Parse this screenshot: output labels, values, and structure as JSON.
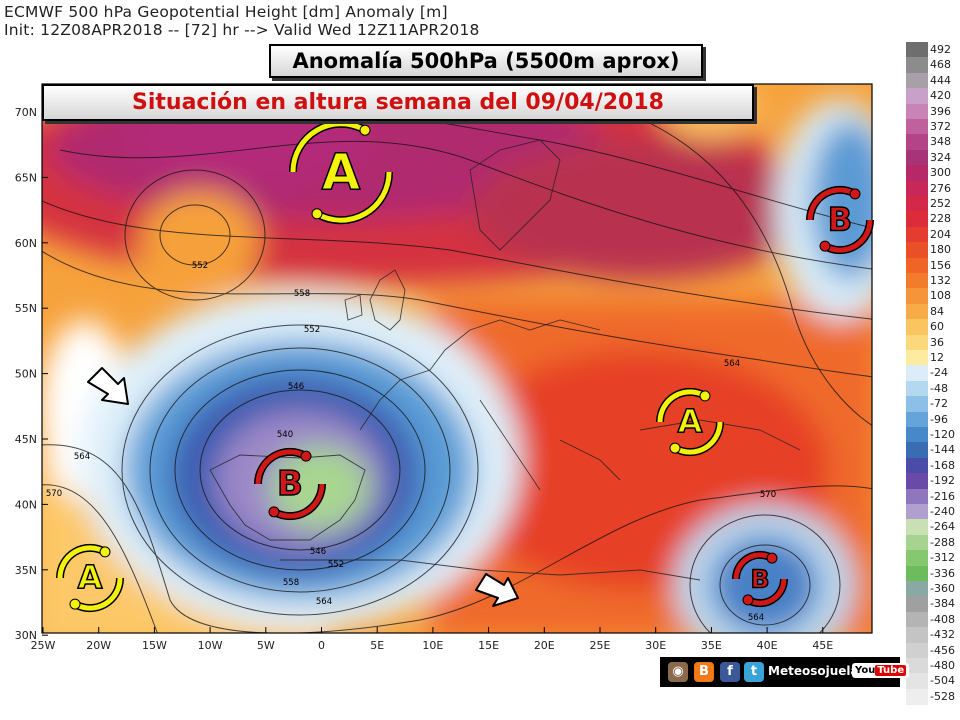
{
  "header": {
    "line1": "ECMWF 500 hPa Geopotential Height [dm] Anomaly [m]",
    "line2": "Init: 12Z08APR2018 -- [72] hr --> Valid Wed 12Z11APR2018"
  },
  "subtitle": "Anomalía 500hPa (5500m aprox)",
  "title": "Situación en altura semana del 09/04/2018",
  "lat_labels": [
    "70N",
    "65N",
    "60N",
    "55N",
    "50N",
    "45N",
    "40N",
    "35N",
    "30N"
  ],
  "lon_labels": [
    "25W",
    "20W",
    "15W",
    "10W",
    "5W",
    "0",
    "5E",
    "10E",
    "15E",
    "20E",
    "25E",
    "30E",
    "35E",
    "40E",
    "45E"
  ],
  "contour_labels": [
    "558",
    "552",
    "558",
    "552",
    "564",
    "570",
    "546",
    "540",
    "546",
    "552",
    "558",
    "564",
    "564",
    "570",
    "564",
    "548"
  ],
  "pressure_systems": [
    {
      "type": "A",
      "name": "high-north-atlantic"
    },
    {
      "type": "B",
      "name": "low-iberia"
    },
    {
      "type": "A",
      "name": "high-balkans"
    },
    {
      "type": "B",
      "name": "low-russia"
    },
    {
      "type": "A",
      "name": "high-azores"
    },
    {
      "type": "B",
      "name": "low-eastern-med"
    }
  ],
  "legend": [
    {
      "label": "492",
      "color": "#6e6e6e"
    },
    {
      "label": "468",
      "color": "#8c8c8c"
    },
    {
      "label": "444",
      "color": "#a8a0a8"
    },
    {
      "label": "420",
      "color": "#c8a0c8"
    },
    {
      "label": "396",
      "color": "#c884b4"
    },
    {
      "label": "372",
      "color": "#c0609c"
    },
    {
      "label": "348",
      "color": "#b44488"
    },
    {
      "label": "324",
      "color": "#a83478"
    },
    {
      "label": "300",
      "color": "#b82868"
    },
    {
      "label": "276",
      "color": "#c82858"
    },
    {
      "label": "252",
      "color": "#d42848"
    },
    {
      "label": "228",
      "color": "#dc2c3c"
    },
    {
      "label": "204",
      "color": "#e43c30"
    },
    {
      "label": "180",
      "color": "#ea5028"
    },
    {
      "label": "156",
      "color": "#f06428"
    },
    {
      "label": "132",
      "color": "#f37c2c"
    },
    {
      "label": "108",
      "color": "#f59438"
    },
    {
      "label": "84",
      "color": "#f8ac48"
    },
    {
      "label": "60",
      "color": "#fac460"
    },
    {
      "label": "36",
      "color": "#fcd87c"
    },
    {
      "label": "12",
      "color": "#fdeca0"
    },
    {
      "label": "-24",
      "color": "#dcecf8"
    },
    {
      "label": "-48",
      "color": "#b4d8f0"
    },
    {
      "label": "-72",
      "color": "#8cc0e6"
    },
    {
      "label": "-96",
      "color": "#64a4d8"
    },
    {
      "label": "-120",
      "color": "#4688c8"
    },
    {
      "label": "-144",
      "color": "#3a6cb4"
    },
    {
      "label": "-168",
      "color": "#4a4ca8"
    },
    {
      "label": "-192",
      "color": "#6a4aa8"
    },
    {
      "label": "-216",
      "color": "#9076bc"
    },
    {
      "label": "-240",
      "color": "#b0a0d0"
    },
    {
      "label": "-264",
      "color": "#c8e0b4"
    },
    {
      "label": "-288",
      "color": "#a6d490"
    },
    {
      "label": "-312",
      "color": "#86c870"
    },
    {
      "label": "-336",
      "color": "#6cbc5c"
    },
    {
      "label": "-360",
      "color": "#8aa8a4"
    },
    {
      "label": "-384",
      "color": "#a0a0a0"
    },
    {
      "label": "-408",
      "color": "#b4b4b4"
    },
    {
      "label": "-432",
      "color": "#c4c4c4"
    },
    {
      "label": "-456",
      "color": "#d0d0d0"
    },
    {
      "label": "-480",
      "color": "#dadada"
    },
    {
      "label": "-504",
      "color": "#e4e4e4"
    },
    {
      "label": "-528",
      "color": "#eeeeee"
    }
  ],
  "footer": {
    "brand": "Meteosojuela",
    "youtube_you": "You",
    "youtube_tube": "Tube"
  }
}
